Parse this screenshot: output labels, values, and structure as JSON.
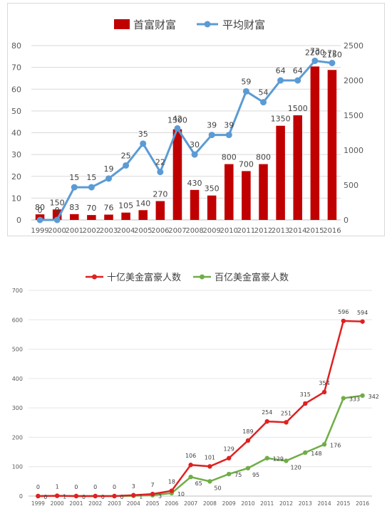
{
  "chart_data": [
    {
      "type": "bar",
      "title": "",
      "legend": [
        "首富财富",
        "平均财富"
      ],
      "legend_placement": "top",
      "categories": [
        "1999",
        "2000",
        "2001",
        "2002",
        "2003",
        "2004",
        "2005",
        "2006",
        "2007",
        "2008",
        "2009",
        "2010",
        "2011",
        "2012",
        "2013",
        "2014",
        "2015",
        "2016"
      ],
      "series": [
        {
          "name": "首富财富",
          "type": "bar",
          "axis": "right",
          "color": "#c00000",
          "values": [
            80,
            150,
            83,
            70,
            76,
            105,
            140,
            270,
            1300,
            430,
            350,
            800,
            700,
            800,
            1350,
            1500,
            2200,
            2150
          ]
        },
        {
          "name": "平均财富",
          "type": "line",
          "axis": "left",
          "color": "#5b9bd5",
          "values": [
            0,
            0,
            15,
            15,
            19,
            25,
            35,
            22,
            42,
            30,
            39,
            39,
            59,
            54,
            64,
            64,
            73,
            72
          ]
        }
      ],
      "left_axis": {
        "min": 0,
        "max": 80,
        "ticks": [
          "0",
          "10",
          "20",
          "30",
          "40",
          "50",
          "60",
          "70",
          "80"
        ]
      },
      "right_axis": {
        "min": 0,
        "max": 2500,
        "ticks": [
          "0",
          "500",
          "1000",
          "1500",
          "2000",
          "2500"
        ]
      },
      "grid": true
    },
    {
      "type": "line",
      "title": "",
      "legend": [
        "十亿美金富豪人数",
        "百亿美金富豪人数"
      ],
      "legend_placement": "top",
      "categories": [
        "1999",
        "2000",
        "2001",
        "2002",
        "2003",
        "2004",
        "2005",
        "2006",
        "2007",
        "2008",
        "2009",
        "2010",
        "2011",
        "2012",
        "2013",
        "2014",
        "2015",
        "2016"
      ],
      "series": [
        {
          "name": "十亿美金富豪人数",
          "color": "#e02020",
          "values": [
            0,
            1,
            0,
            0,
            0,
            3,
            7,
            18,
            106,
            101,
            129,
            189,
            254,
            251,
            315,
            354,
            596,
            594
          ]
        },
        {
          "name": "百亿美金富豪人数",
          "color": "#70ad47",
          "values": [
            0,
            1,
            0,
            0,
            0,
            1,
            3,
            10,
            65,
            50,
            75,
            95,
            129,
            120,
            148,
            176,
            333,
            342
          ]
        }
      ],
      "y_axis": {
        "min": 0,
        "max": 700,
        "ticks": [
          "0",
          "100",
          "200",
          "300",
          "400",
          "500",
          "600",
          "700"
        ]
      },
      "grid": true
    }
  ]
}
